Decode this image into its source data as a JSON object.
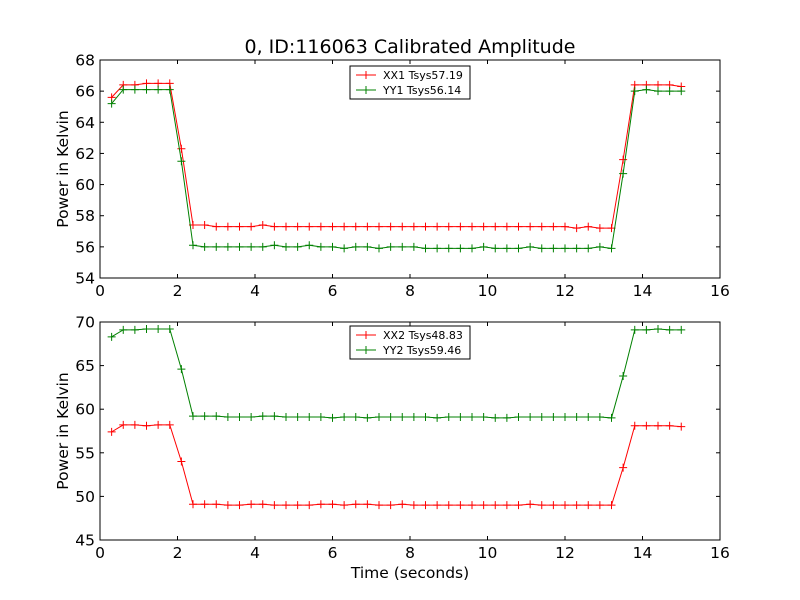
{
  "figure": {
    "title": "0, ID:116063 Calibrated Amplitude"
  },
  "chart_data": [
    {
      "type": "line",
      "title": "0, ID:116063 Calibrated Amplitude",
      "xlabel": "",
      "ylabel": "Power in Kelvin",
      "xlim": [
        0,
        16
      ],
      "ylim": [
        54,
        68
      ],
      "xticks": [
        "0",
        "2",
        "4",
        "6",
        "8",
        "10",
        "12",
        "14",
        "16"
      ],
      "yticks": [
        "54",
        "56",
        "58",
        "60",
        "62",
        "64",
        "66",
        "68"
      ],
      "grid": false,
      "legend": "top-center",
      "x": [
        0.3,
        0.6,
        0.9,
        1.2,
        1.5,
        1.8,
        2.1,
        2.4,
        2.7,
        3.0,
        3.3,
        3.6,
        3.9,
        4.2,
        4.5,
        4.8,
        5.1,
        5.4,
        5.7,
        6.0,
        6.3,
        6.6,
        6.9,
        7.2,
        7.5,
        7.8,
        8.1,
        8.4,
        8.7,
        9.0,
        9.3,
        9.6,
        9.9,
        10.2,
        10.5,
        10.8,
        11.1,
        11.4,
        11.7,
        12.0,
        12.3,
        12.6,
        12.9,
        13.2,
        13.5,
        13.8,
        14.1,
        14.4,
        14.7,
        15.0
      ],
      "series": [
        {
          "name": "XX1 Tsys57.19",
          "color": "#ff0000",
          "values": [
            65.6,
            66.4,
            66.4,
            66.5,
            66.5,
            66.5,
            62.3,
            57.4,
            57.4,
            57.3,
            57.3,
            57.3,
            57.3,
            57.4,
            57.3,
            57.3,
            57.3,
            57.3,
            57.3,
            57.3,
            57.3,
            57.3,
            57.3,
            57.3,
            57.3,
            57.3,
            57.3,
            57.3,
            57.3,
            57.3,
            57.3,
            57.3,
            57.3,
            57.3,
            57.3,
            57.3,
            57.3,
            57.3,
            57.3,
            57.3,
            57.2,
            57.3,
            57.2,
            57.2,
            61.6,
            66.4,
            66.4,
            66.4,
            66.4,
            66.3
          ]
        },
        {
          "name": "YY1 Tsys56.14",
          "color": "#008000",
          "values": [
            65.2,
            66.1,
            66.1,
            66.1,
            66.1,
            66.1,
            61.5,
            56.1,
            56.0,
            56.0,
            56.0,
            56.0,
            56.0,
            56.0,
            56.1,
            56.0,
            56.0,
            56.1,
            56.0,
            56.0,
            55.9,
            56.0,
            56.0,
            55.9,
            56.0,
            56.0,
            56.0,
            55.9,
            55.9,
            55.9,
            55.9,
            55.9,
            56.0,
            55.9,
            55.9,
            55.9,
            56.0,
            55.9,
            55.9,
            55.9,
            55.9,
            55.9,
            56.0,
            55.9,
            60.7,
            66.0,
            66.1,
            66.0,
            66.0,
            66.0
          ]
        }
      ]
    },
    {
      "type": "line",
      "title": "",
      "xlabel": "Time (seconds)",
      "ylabel": "Power in Kelvin",
      "xlim": [
        0,
        16
      ],
      "ylim": [
        45,
        70
      ],
      "xticks": [
        "0",
        "2",
        "4",
        "6",
        "8",
        "10",
        "12",
        "14",
        "16"
      ],
      "yticks": [
        "45",
        "50",
        "55",
        "60",
        "65",
        "70"
      ],
      "grid": false,
      "legend": "top-center",
      "x": [
        0.3,
        0.6,
        0.9,
        1.2,
        1.5,
        1.8,
        2.1,
        2.4,
        2.7,
        3.0,
        3.3,
        3.6,
        3.9,
        4.2,
        4.5,
        4.8,
        5.1,
        5.4,
        5.7,
        6.0,
        6.3,
        6.6,
        6.9,
        7.2,
        7.5,
        7.8,
        8.1,
        8.4,
        8.7,
        9.0,
        9.3,
        9.6,
        9.9,
        10.2,
        10.5,
        10.8,
        11.1,
        11.4,
        11.7,
        12.0,
        12.3,
        12.6,
        12.9,
        13.2,
        13.5,
        13.8,
        14.1,
        14.4,
        14.7,
        15.0
      ],
      "series": [
        {
          "name": "XX2 Tsys48.83",
          "color": "#ff0000",
          "values": [
            57.4,
            58.2,
            58.2,
            58.1,
            58.2,
            58.2,
            54.0,
            49.1,
            49.1,
            49.1,
            49.0,
            49.0,
            49.1,
            49.1,
            49.0,
            49.0,
            49.0,
            49.0,
            49.1,
            49.1,
            49.0,
            49.1,
            49.1,
            49.0,
            49.0,
            49.1,
            49.0,
            49.0,
            49.0,
            49.0,
            49.0,
            49.0,
            49.0,
            49.0,
            49.0,
            49.0,
            49.1,
            49.0,
            49.0,
            49.0,
            49.0,
            49.0,
            49.0,
            49.0,
            53.3,
            58.1,
            58.1,
            58.1,
            58.1,
            58.0
          ]
        },
        {
          "name": "YY2 Tsys59.46",
          "color": "#008000",
          "values": [
            68.3,
            69.1,
            69.1,
            69.2,
            69.2,
            69.2,
            64.6,
            59.2,
            59.2,
            59.2,
            59.1,
            59.1,
            59.1,
            59.2,
            59.2,
            59.1,
            59.1,
            59.1,
            59.1,
            59.0,
            59.1,
            59.1,
            59.0,
            59.1,
            59.1,
            59.1,
            59.1,
            59.1,
            59.0,
            59.1,
            59.1,
            59.1,
            59.1,
            59.0,
            59.0,
            59.1,
            59.1,
            59.1,
            59.1,
            59.1,
            59.1,
            59.1,
            59.1,
            59.0,
            63.8,
            69.1,
            69.1,
            69.2,
            69.1,
            69.1
          ]
        }
      ]
    }
  ]
}
